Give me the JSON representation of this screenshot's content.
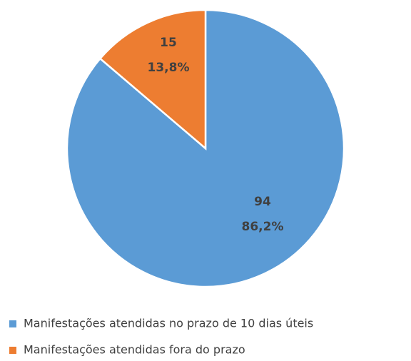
{
  "chart_data": {
    "type": "pie",
    "categories": [
      "Manifestações atendidas no prazo de 10 dias úteis",
      "Manifestações atendidas fora do prazo"
    ],
    "values": [
      94,
      15
    ],
    "percentages": [
      86.2,
      13.8
    ],
    "percentage_labels": [
      "86,2%",
      "13,8%"
    ],
    "colors": [
      "#5b9bd5",
      "#ed7d31"
    ],
    "legend": "bottom"
  }
}
